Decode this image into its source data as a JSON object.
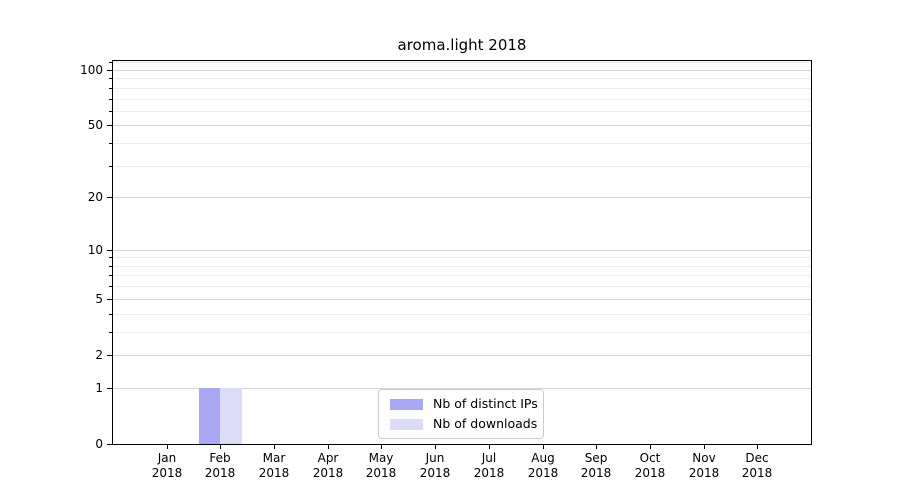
{
  "title": "aroma.light 2018",
  "chart_data": {
    "type": "bar",
    "title": "aroma.light 2018",
    "x": [
      "Jan 2018",
      "Feb 2018",
      "Mar 2018",
      "Apr 2018",
      "May 2018",
      "Jun 2018",
      "Jul 2018",
      "Aug 2018",
      "Sep 2018",
      "Oct 2018",
      "Nov 2018",
      "Dec 2018"
    ],
    "series": [
      {
        "name": "Nb of distinct IPs",
        "color": "#a9a9f3",
        "values": [
          0,
          1,
          0,
          0,
          0,
          0,
          0,
          0,
          0,
          0,
          0,
          0
        ]
      },
      {
        "name": "Nb of downloads",
        "color": "#dcdcf9",
        "values": [
          0,
          1,
          0,
          0,
          0,
          0,
          0,
          0,
          0,
          0,
          0,
          0
        ]
      }
    ],
    "xlabel": "",
    "ylabel": "",
    "yscale": "log1p",
    "y_ticks": [
      0,
      1,
      2,
      5,
      10,
      20,
      50,
      100
    ],
    "y_minor_ticks": [
      3,
      4,
      6,
      7,
      8,
      9,
      30,
      40,
      60,
      70,
      80,
      90,
      110
    ],
    "ylim": [
      0,
      112
    ],
    "grid": "horizontal",
    "legend_position": "lower center",
    "colors": {
      "major_grid": "#d4d4d4",
      "minor_grid": "#ededed",
      "spine": "#000000",
      "text": "#000000",
      "legend_border": "#cccccc"
    }
  }
}
